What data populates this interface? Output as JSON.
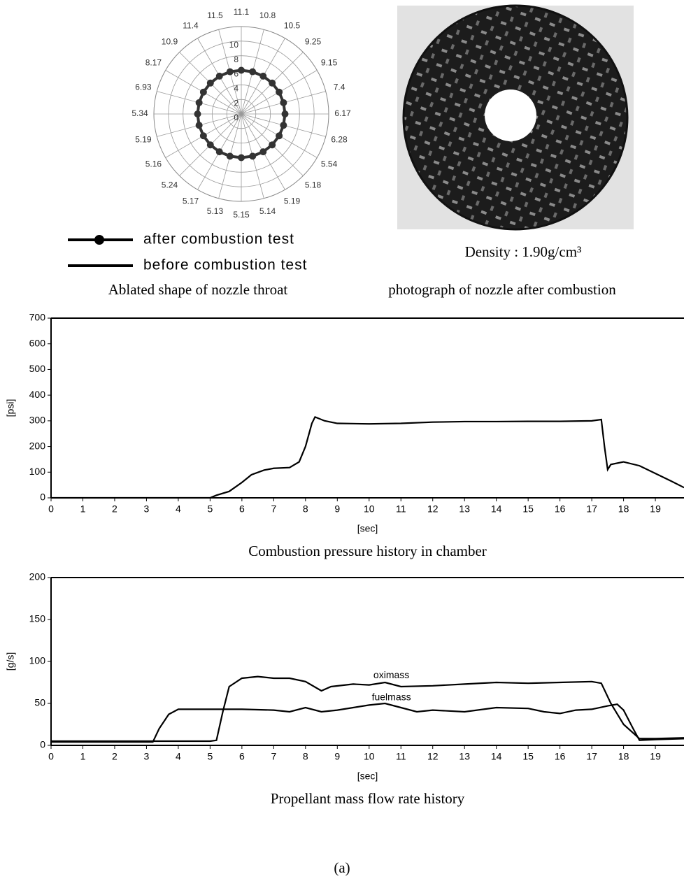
{
  "nozzle_figure": {
    "polar": {
      "angle_labels": [
        "11.1",
        "10.8",
        "10.5",
        "9.25",
        "9.15",
        "7.4",
        "6.17",
        "6.28",
        "5.54",
        "5.18",
        "5.19",
        "5.14",
        "5.15",
        "5.13",
        "5.17",
        "5.24",
        "5.16",
        "5.19",
        "5.34",
        "6.93",
        "8.17",
        "10.9",
        "11.4",
        "11.5"
      ],
      "rlim": [
        0,
        12
      ],
      "rticks": [
        0,
        2,
        4,
        6,
        8,
        10
      ],
      "after_values": [
        6,
        6,
        6,
        6,
        6,
        6,
        6,
        6,
        6,
        6,
        6,
        6,
        6,
        6,
        6,
        6,
        6,
        6,
        6,
        6,
        6,
        6,
        6,
        6
      ]
    },
    "legend": [
      "after combustion test",
      "before combustion test"
    ],
    "density": "Density : 1.90g/cm³",
    "captions": [
      "Ablated shape of nozzle throat",
      "photograph of nozzle after combustion"
    ],
    "panel_label": "(a)"
  },
  "chart_data": [
    {
      "type": "line",
      "caption": "Combustion pressure history in chamber",
      "x_label": "[sec]",
      "y_label": "[psi]",
      "color": "#000000",
      "x": [
        0,
        5,
        5.2,
        5.6,
        6,
        6.3,
        6.7,
        7,
        7.5,
        7.8,
        8,
        8.2,
        8.3,
        8.6,
        9,
        10,
        11,
        12,
        13,
        14,
        15,
        16,
        17,
        17.3,
        17.4,
        17.5,
        17.6,
        18,
        18.5,
        19,
        19.5,
        19.9
      ],
      "values": [
        0,
        0,
        10,
        25,
        60,
        90,
        108,
        115,
        118,
        140,
        200,
        290,
        315,
        300,
        290,
        288,
        290,
        295,
        297,
        297,
        298,
        298,
        300,
        305,
        200,
        110,
        130,
        140,
        125,
        95,
        65,
        40
      ],
      "xlim": [
        0,
        19.9
      ],
      "xticks": [
        0,
        1,
        2,
        3,
        4,
        5,
        6,
        7,
        8,
        9,
        10,
        11,
        12,
        13,
        14,
        15,
        16,
        17,
        18,
        19
      ],
      "ylim": [
        0,
        700
      ],
      "yticks": [
        0,
        100,
        200,
        300,
        400,
        500,
        600,
        700
      ]
    },
    {
      "type": "line",
      "caption": "Propellant mass flow rate history",
      "x_label": "[sec]",
      "y_label": "[g/s]",
      "series": [
        {
          "name": "oximass",
          "color": "#000000",
          "x": [
            0,
            5,
            5.2,
            5.4,
            5.6,
            6,
            6.5,
            7,
            7.5,
            8,
            8.5,
            8.8,
            9.5,
            10,
            10.5,
            11,
            12,
            13,
            14,
            15,
            16,
            17,
            17.3,
            17.6,
            18,
            18.5,
            19,
            19.9
          ],
          "values": [
            5,
            5,
            6,
            40,
            70,
            80,
            82,
            80,
            80,
            76,
            65,
            70,
            73,
            72,
            75,
            70,
            71,
            73,
            75,
            74,
            75,
            76,
            74,
            50,
            25,
            8,
            8,
            9
          ]
        },
        {
          "name": "fuelmass",
          "color": "#000000",
          "x": [
            0,
            3.2,
            3.4,
            3.7,
            4,
            5,
            6,
            7,
            7.5,
            8,
            8.5,
            9,
            9.5,
            10,
            10.5,
            11,
            11.5,
            12,
            13,
            14,
            15,
            15.5,
            16,
            16.5,
            17,
            17.5,
            17.8,
            18,
            18.3,
            18.5,
            19,
            19.9
          ],
          "values": [
            4,
            4,
            20,
            37,
            43,
            43,
            43,
            42,
            40,
            45,
            40,
            42,
            45,
            48,
            50,
            45,
            40,
            42,
            40,
            45,
            44,
            40,
            38,
            42,
            43,
            47,
            49,
            42,
            20,
            6,
            7,
            8
          ]
        }
      ],
      "xlim": [
        0,
        19.9
      ],
      "xticks": [
        0,
        1,
        2,
        3,
        4,
        5,
        6,
        7,
        8,
        9,
        10,
        11,
        12,
        13,
        14,
        15,
        16,
        17,
        18,
        19
      ],
      "ylim": [
        0,
        200
      ],
      "yticks": [
        0,
        50,
        100,
        150,
        200
      ]
    }
  ]
}
